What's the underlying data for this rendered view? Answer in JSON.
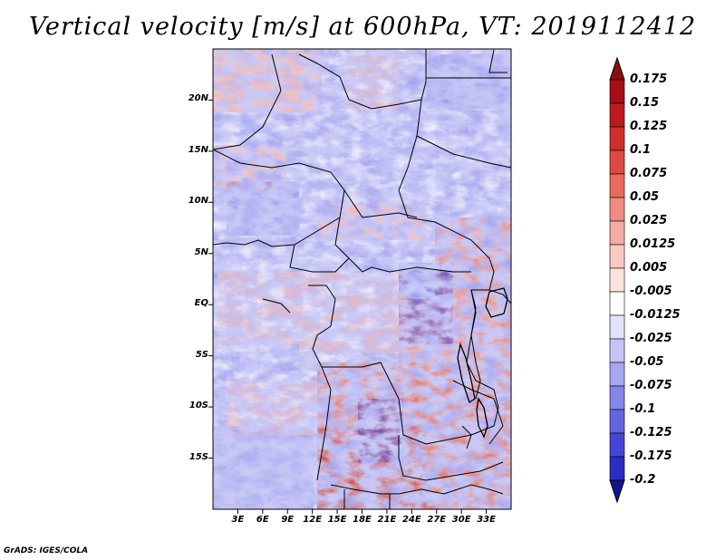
{
  "title": "Vertical velocity [m/s] at 600hPa, VT: 2019112412",
  "credit": "GrADS: IGES/COLA",
  "map": {
    "lon_range": [
      0,
      36
    ],
    "lat_range": [
      -20,
      25
    ],
    "lat_ticks": [
      {
        "value": 20,
        "label": "20N"
      },
      {
        "value": 15,
        "label": "15N"
      },
      {
        "value": 10,
        "label": "10N"
      },
      {
        "value": 5,
        "label": "5N"
      },
      {
        "value": 0,
        "label": "EQ"
      },
      {
        "value": -5,
        "label": "5S"
      },
      {
        "value": -10,
        "label": "10S"
      },
      {
        "value": -15,
        "label": "15S"
      }
    ],
    "lon_ticks": [
      {
        "value": 3,
        "label": "3E"
      },
      {
        "value": 6,
        "label": "6E"
      },
      {
        "value": 9,
        "label": "9E"
      },
      {
        "value": 12,
        "label": "12E"
      },
      {
        "value": 15,
        "label": "15E"
      },
      {
        "value": 18,
        "label": "18E"
      },
      {
        "value": 21,
        "label": "21E"
      },
      {
        "value": 24,
        "label": "24E"
      },
      {
        "value": 27,
        "label": "27E"
      },
      {
        "value": 30,
        "label": "30E"
      },
      {
        "value": 33,
        "label": "33E"
      }
    ]
  },
  "colorbar": {
    "levels": [
      {
        "label": "0.175",
        "color": "#a50f15"
      },
      {
        "label": "0.15",
        "color": "#bb1b1f"
      },
      {
        "label": "0.125",
        "color": "#cf2e2b"
      },
      {
        "label": "0.1",
        "color": "#de4a40"
      },
      {
        "label": "0.075",
        "color": "#e86b5e"
      },
      {
        "label": "0.05",
        "color": "#ef8b80"
      },
      {
        "label": "0.025",
        "color": "#f5aba3"
      },
      {
        "label": "0.0125",
        "color": "#f9c8c2"
      },
      {
        "label": "0.005",
        "color": "#fde3df"
      },
      {
        "label": "-0.005",
        "color": "#ffffff"
      },
      {
        "label": "-0.0125",
        "color": "#e2e2fb"
      },
      {
        "label": "-0.025",
        "color": "#c4c4f7"
      },
      {
        "label": "-0.05",
        "color": "#a6a6f1"
      },
      {
        "label": "-0.075",
        "color": "#8585ea"
      },
      {
        "label": "-0.1",
        "color": "#6565e2"
      },
      {
        "label": "-0.125",
        "color": "#4646d6"
      },
      {
        "label": "-0.175",
        "color": "#2c2cc4"
      },
      {
        "label": "-0.2",
        "color": "#1a1aaa"
      }
    ],
    "top_color": "#8e0b12",
    "bottom_color": "#12128f"
  }
}
